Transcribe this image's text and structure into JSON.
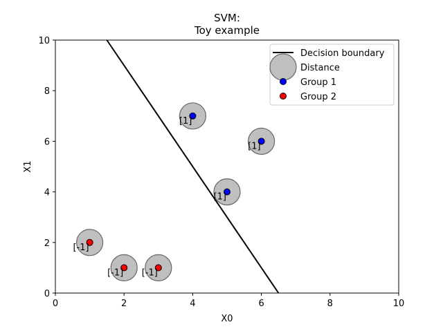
{
  "chart_data": {
    "type": "scatter",
    "title_lines": [
      "SVM:",
      "Toy example"
    ],
    "xlabel": "X0",
    "ylabel": "X1",
    "xlim": [
      0,
      10
    ],
    "ylim": [
      0,
      10
    ],
    "xticks": [
      0,
      2,
      4,
      6,
      8,
      10
    ],
    "yticks": [
      0,
      2,
      4,
      6,
      8,
      10
    ],
    "grid": false,
    "legend_position": "top-right",
    "legend": [
      {
        "label": "Decision boundary",
        "kind": "line",
        "color": "#000000"
      },
      {
        "label": "Distance",
        "kind": "circle",
        "color": "#bfbfbf"
      },
      {
        "label": "Group 1",
        "kind": "point",
        "color": "#0000ff"
      },
      {
        "label": "Group 2",
        "kind": "point",
        "color": "#ff0000"
      }
    ],
    "decision_boundary": {
      "points": [
        [
          1.5,
          10
        ],
        [
          6.5,
          0
        ]
      ],
      "color": "#000000"
    },
    "series": [
      {
        "name": "Group 1",
        "color": "#0000ff",
        "points": [
          {
            "x": 4,
            "y": 7,
            "label": "[1]"
          },
          {
            "x": 6,
            "y": 6,
            "label": "[1]"
          },
          {
            "x": 5,
            "y": 4,
            "label": "[1]"
          }
        ]
      },
      {
        "name": "Group 2",
        "color": "#ff0000",
        "points": [
          {
            "x": 1,
            "y": 2,
            "label": "[-1]"
          },
          {
            "x": 2,
            "y": 1,
            "label": "[-1]"
          },
          {
            "x": 3,
            "y": 1,
            "label": "[-1]"
          }
        ]
      }
    ],
    "distance_circle_color": "#bfbfbf"
  }
}
